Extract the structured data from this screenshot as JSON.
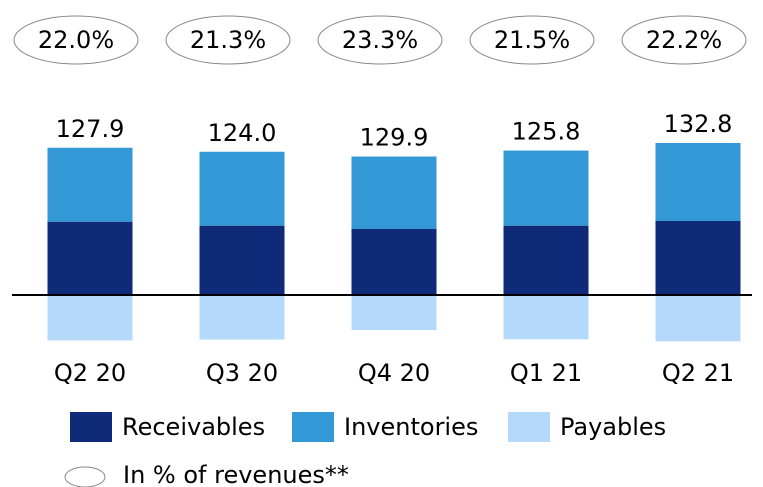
{
  "chart_data": {
    "type": "bar",
    "categories": [
      "Q2 20",
      "Q3 20",
      "Q4 20",
      "Q1 21",
      "Q2 21"
    ],
    "series": [
      {
        "name": "Receivables",
        "color": "#0e2a78",
        "values": [
          92,
          87,
          83,
          87,
          93
        ]
      },
      {
        "name": "Inventories",
        "color": "#3399d6",
        "values": [
          93,
          93,
          91,
          94.5,
          98
        ]
      },
      {
        "name": "Payables",
        "color": "#b5d9fa",
        "values": [
          -57.1,
          -56,
          -44.1,
          -55.7,
          -58.2
        ]
      }
    ],
    "totals": [
      127.9,
      124.0,
      129.9,
      125.8,
      132.8
    ],
    "totals_labels": [
      "127.9",
      "124.0",
      "129.9",
      "125.8",
      "132.8"
    ],
    "ratios": [
      22.0,
      21.3,
      23.3,
      21.5,
      22.2
    ],
    "value_labels": [
      "22.0%",
      "21.3%",
      "23.3%",
      "21.5%",
      "22.2%"
    ],
    "ratio_legend": "In % of revenues**"
  }
}
